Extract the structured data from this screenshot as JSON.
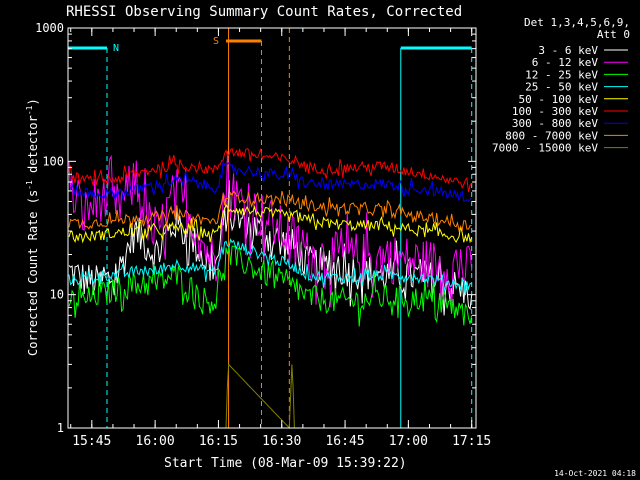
{
  "chart_data": {
    "type": "line",
    "title": "RHESSI Observing Summary Count Rates, Corrected",
    "xlabel": "Start Time (08-Mar-09 15:39:22)",
    "ylabel_main": "Corrected Count Rate (s",
    "ylabel_sup1": "-1",
    "ylabel_mid": " detector",
    "ylabel_sup2": "-1",
    "ylabel_end": ")",
    "yscale": "log",
    "ylim": [
      1,
      1000
    ],
    "xlim": [
      15.656,
      17.267
    ],
    "x_ticks": [
      {
        "label": "15:45",
        "v": 15.75
      },
      {
        "label": "16:00",
        "v": 16.0
      },
      {
        "label": "16:15",
        "v": 16.25
      },
      {
        "label": "16:30",
        "v": 16.5
      },
      {
        "label": "16:45",
        "v": 16.75
      },
      {
        "label": "17:00",
        "v": 17.0
      },
      {
        "label": "17:15",
        "v": 17.25
      }
    ],
    "y_ticks": [
      {
        "label": "1",
        "v": 1
      },
      {
        "label": "10",
        "v": 10
      },
      {
        "label": "100",
        "v": 100
      },
      {
        "label": "1000",
        "v": 1000
      }
    ],
    "legend": {
      "placement": "top-right",
      "header1": "Det 1,3,4,5,6,9,",
      "header2": "Att 0"
    },
    "annotations": {
      "night_label": "N",
      "saa_label": "S",
      "date_stamp": "14-Oct-2021 04:18"
    },
    "night_intervals": [
      [
        15.656,
        15.81
      ],
      [
        16.97,
        17.25
      ]
    ],
    "saa_interval": [
      16.28,
      16.42
    ],
    "data_gap": [
      16.29,
      16.53
    ],
    "series": [
      {
        "name": "3 - 6 keV",
        "color": "#ffffff",
        "x": [
          15.66,
          15.72,
          15.78,
          15.85,
          15.92,
          16.0,
          16.08,
          16.15,
          16.2,
          16.24,
          16.28,
          16.56,
          16.6,
          16.7,
          16.8,
          16.9,
          17.0,
          17.1,
          17.2,
          17.25
        ],
        "y": [
          15,
          13,
          12,
          14,
          30,
          20,
          35,
          25,
          18,
          16,
          40,
          22,
          17,
          16,
          15,
          14,
          14,
          13,
          11,
          10
        ]
      },
      {
        "name": "6 - 12 keV",
        "color": "#ff00ff",
        "x": [
          15.66,
          15.72,
          15.78,
          15.85,
          15.92,
          16.0,
          16.08,
          16.15,
          16.2,
          16.24,
          16.28,
          16.56,
          16.6,
          16.7,
          16.8,
          16.9,
          17.0,
          17.1,
          17.2,
          17.25
        ],
        "y": [
          60,
          40,
          55,
          45,
          70,
          25,
          60,
          35,
          22,
          18,
          60,
          25,
          20,
          19,
          19,
          19,
          18,
          17,
          16,
          15
        ]
      },
      {
        "name": "12 - 25 keV",
        "color": "#00ff00",
        "x": [
          15.66,
          15.72,
          15.78,
          15.85,
          15.92,
          16.0,
          16.08,
          16.15,
          16.2,
          16.24,
          16.28,
          16.56,
          16.6,
          16.7,
          16.8,
          16.9,
          17.0,
          17.1,
          17.2,
          17.25
        ],
        "y": [
          9,
          9,
          10,
          11,
          12,
          12,
          14,
          11,
          9,
          9,
          20,
          11,
          9.5,
          9,
          9,
          9.5,
          9.5,
          9,
          7.5,
          7
        ]
      },
      {
        "name": "25 - 50 keV",
        "color": "#00ffff",
        "x": [
          15.66,
          15.72,
          15.78,
          15.85,
          15.92,
          16.0,
          16.08,
          16.15,
          16.2,
          16.24,
          16.28,
          16.56,
          16.6,
          16.7,
          16.8,
          16.9,
          17.0,
          17.1,
          17.2,
          17.25
        ],
        "y": [
          13,
          13,
          14,
          14,
          15,
          15,
          17,
          16,
          15,
          15,
          25,
          16,
          14,
          13.5,
          13.5,
          14,
          14,
          13,
          12,
          12
        ]
      },
      {
        "name": "50 - 100 keV",
        "color": "#ffff00",
        "x": [
          15.66,
          15.72,
          15.78,
          15.85,
          15.92,
          16.0,
          16.08,
          16.15,
          16.2,
          16.24,
          16.28,
          16.56,
          16.6,
          16.7,
          16.8,
          16.9,
          17.0,
          17.1,
          17.2,
          17.25
        ],
        "y": [
          28,
          27,
          28,
          29,
          30,
          30,
          32,
          31,
          29,
          28,
          45,
          38,
          36,
          34,
          33,
          33,
          31,
          29,
          27,
          27
        ]
      },
      {
        "name": "100 - 300 keV",
        "color": "#ff0000",
        "x": [
          15.66,
          15.72,
          15.78,
          15.85,
          15.92,
          16.0,
          16.08,
          16.15,
          16.2,
          16.24,
          16.28,
          16.56,
          16.6,
          16.7,
          16.8,
          16.9,
          17.0,
          17.1,
          17.2,
          17.25
        ],
        "y": [
          78,
          72,
          72,
          74,
          80,
          88,
          95,
          92,
          88,
          85,
          120,
          100,
          90,
          88,
          90,
          92,
          85,
          78,
          70,
          68
        ]
      },
      {
        "name": "300 - 800 keV",
        "color": "#0000ff",
        "x": [
          15.66,
          15.72,
          15.78,
          15.85,
          15.92,
          16.0,
          16.08,
          16.15,
          16.2,
          16.24,
          16.28,
          16.56,
          16.6,
          16.7,
          16.8,
          16.9,
          17.0,
          17.1,
          17.2,
          17.25
        ],
        "y": [
          62,
          58,
          57,
          58,
          62,
          66,
          72,
          70,
          66,
          64,
          90,
          75,
          68,
          66,
          67,
          68,
          64,
          60,
          55,
          53
        ]
      },
      {
        "name": "800 - 7000 keV",
        "color": "#ff8000",
        "x": [
          15.66,
          15.72,
          15.78,
          15.85,
          15.92,
          16.0,
          16.08,
          16.15,
          16.2,
          16.24,
          16.28,
          16.56,
          16.6,
          16.7,
          16.8,
          16.9,
          17.0,
          17.1,
          17.2,
          17.25
        ],
        "y": [
          35,
          34,
          35,
          36,
          38,
          38,
          40,
          38,
          36,
          35,
          55,
          50,
          47,
          45,
          44,
          43,
          40,
          37,
          34,
          33
        ]
      },
      {
        "name": "7000 - 15000 keV",
        "color": "#808000",
        "x": [
          15.66,
          16.28,
          16.285,
          16.29,
          16.53,
          16.54,
          16.545,
          16.55,
          17.25
        ],
        "y": [
          1,
          1,
          2,
          3,
          1,
          3,
          2,
          1,
          1
        ]
      }
    ]
  }
}
